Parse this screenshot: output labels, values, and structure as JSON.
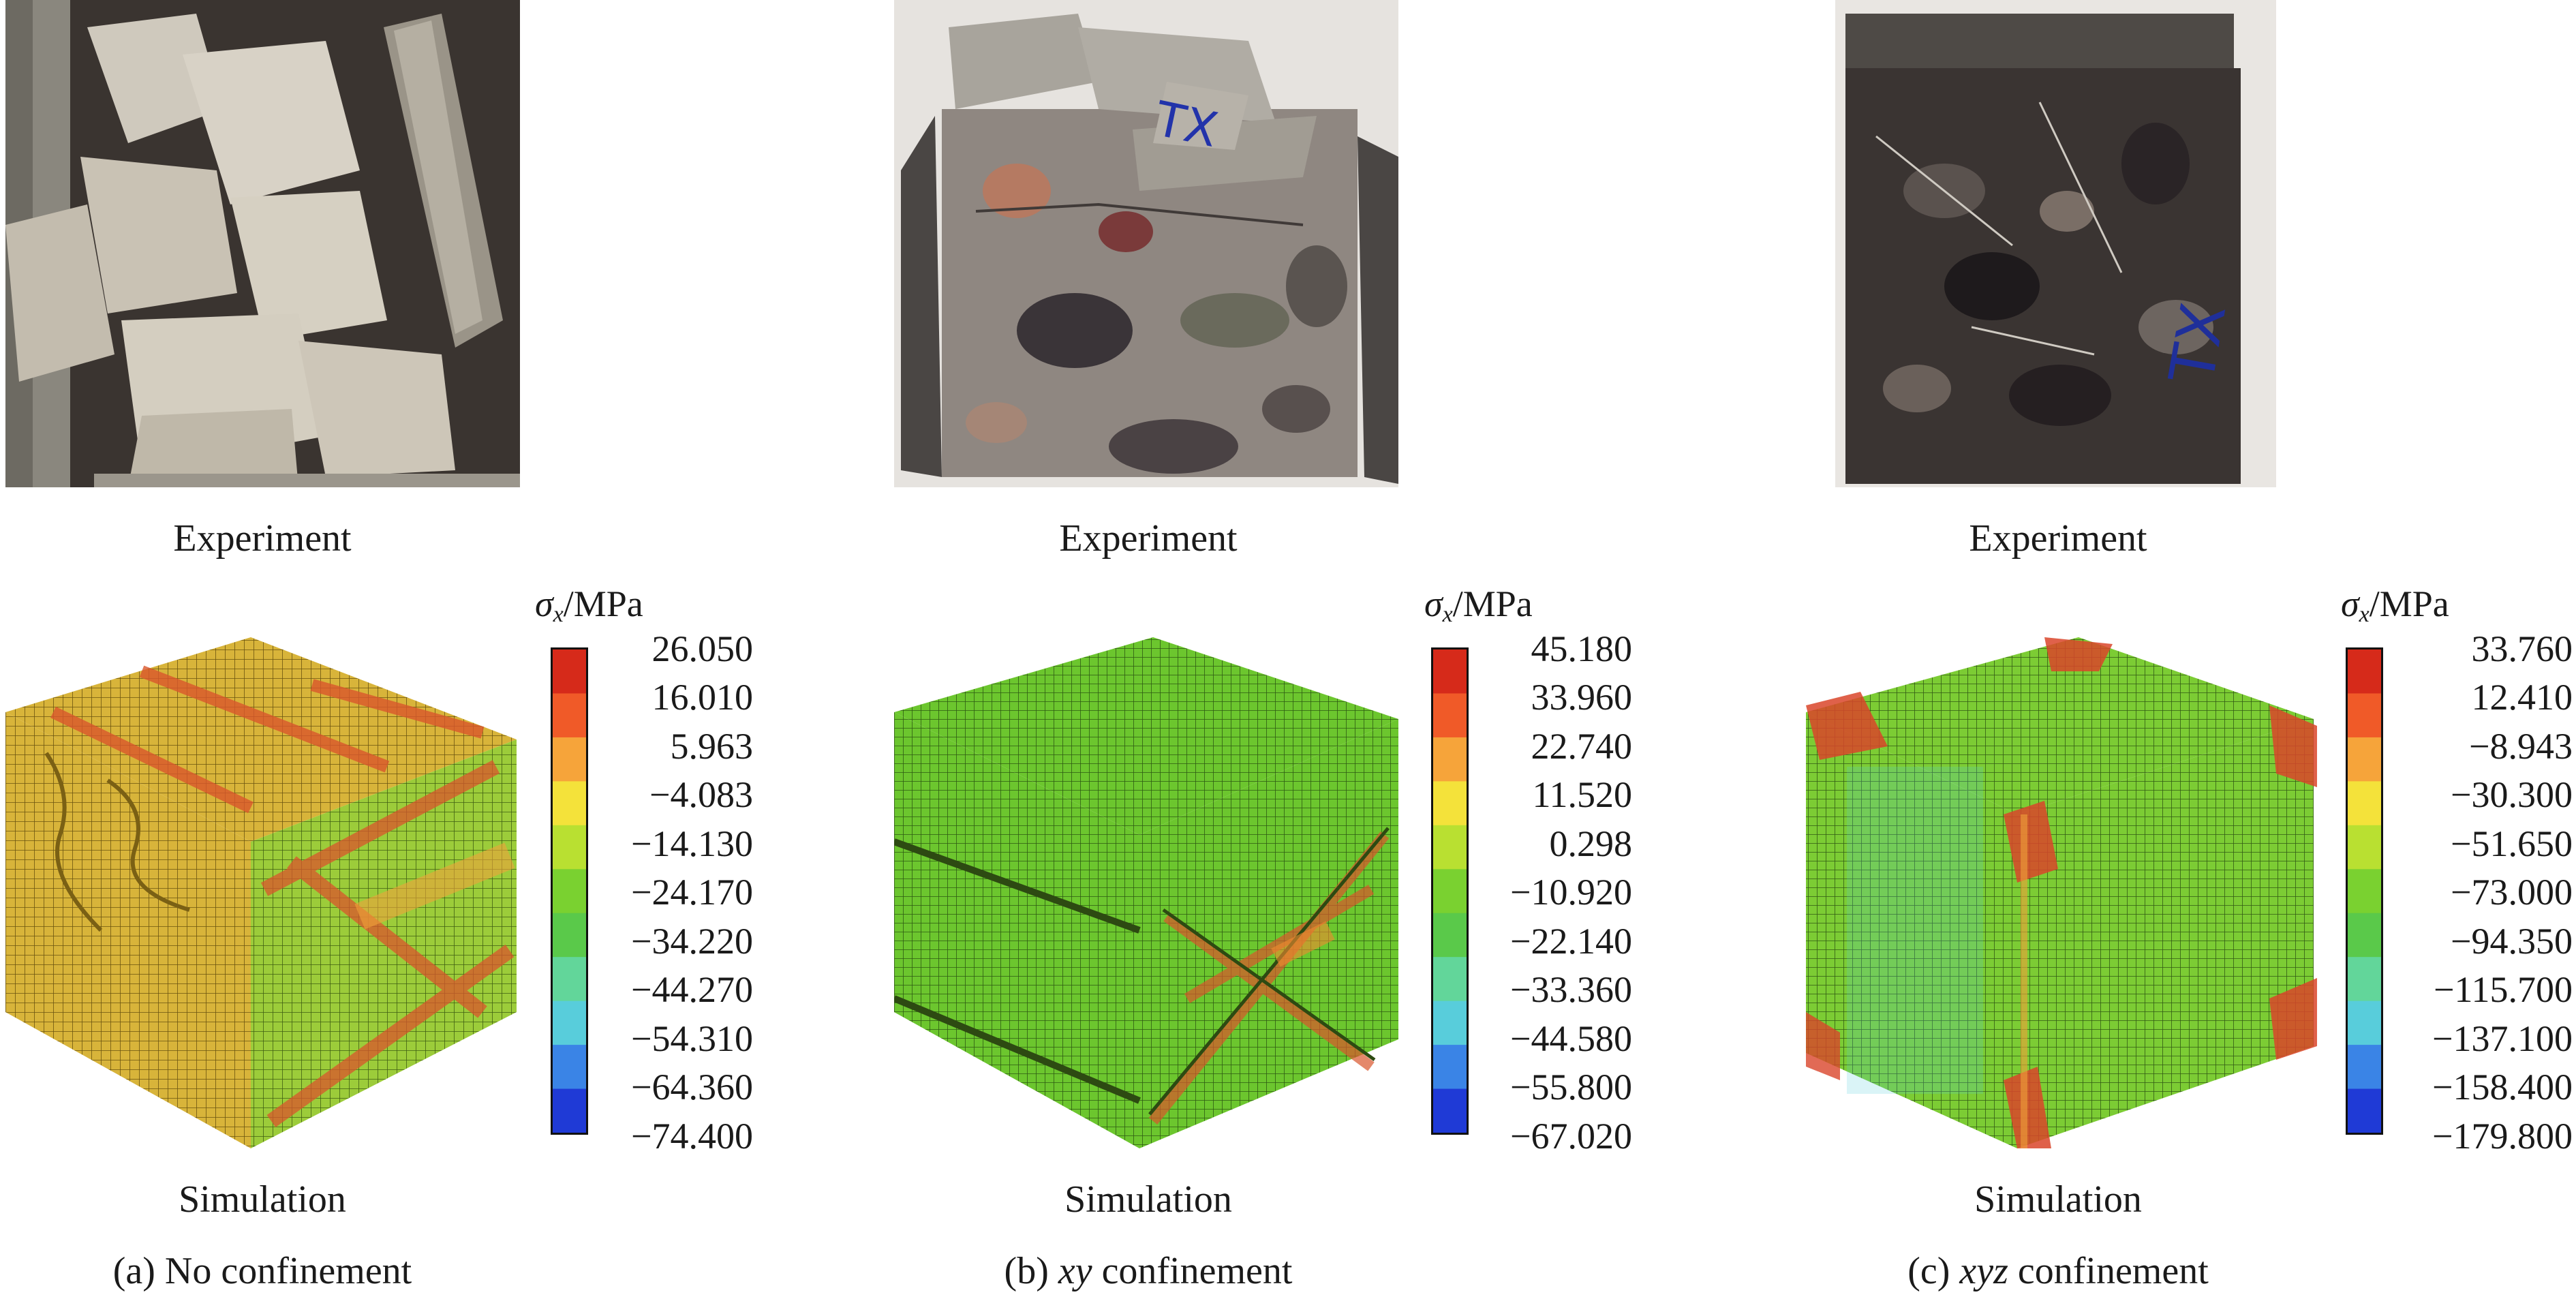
{
  "colorbar_colors": [
    "#d62a1a",
    "#f05a28",
    "#f6a43a",
    "#f4e23a",
    "#b9e031",
    "#7ad130",
    "#5ac94a",
    "#62d69a",
    "#58cddb",
    "#3a84e6",
    "#1f3ad6"
  ],
  "panels": [
    {
      "experiment_label": "Experiment",
      "simulation_label": "Simulation",
      "caption_prefix": "(a) No confinement",
      "caption_italic": "",
      "caption_suffix": "",
      "colorbar": {
        "symbol": "σ",
        "subscript": "x",
        "unit": "/MPa",
        "ticks": [
          "26.050",
          "16.010",
          "5.963",
          "−4.083",
          "−14.130",
          "−24.170",
          "−34.220",
          "−44.270",
          "−54.310",
          "−64.360",
          "−74.400"
        ]
      }
    },
    {
      "experiment_label": "Experiment",
      "simulation_label": "Simulation",
      "caption_prefix": "(b) ",
      "caption_italic": "xy",
      "caption_suffix": " confinement",
      "colorbar": {
        "symbol": "σ",
        "subscript": "x",
        "unit": "/MPa",
        "ticks": [
          "45.180",
          "33.960",
          "22.740",
          "11.520",
          "0.298",
          "−10.920",
          "−22.140",
          "−33.360",
          "−44.580",
          "−55.800",
          "−67.020"
        ]
      }
    },
    {
      "experiment_label": "Experiment",
      "simulation_label": "Simulation",
      "caption_prefix": "(c) ",
      "caption_italic": "xyz",
      "caption_suffix": " confinement",
      "colorbar": {
        "symbol": "σ",
        "subscript": "x",
        "unit": "/MPa",
        "ticks": [
          "33.760",
          "12.410",
          "−8.943",
          "−30.300",
          "−51.650",
          "−73.000",
          "−94.350",
          "−115.700",
          "−137.100",
          "−158.400",
          "−179.800"
        ]
      }
    }
  ]
}
